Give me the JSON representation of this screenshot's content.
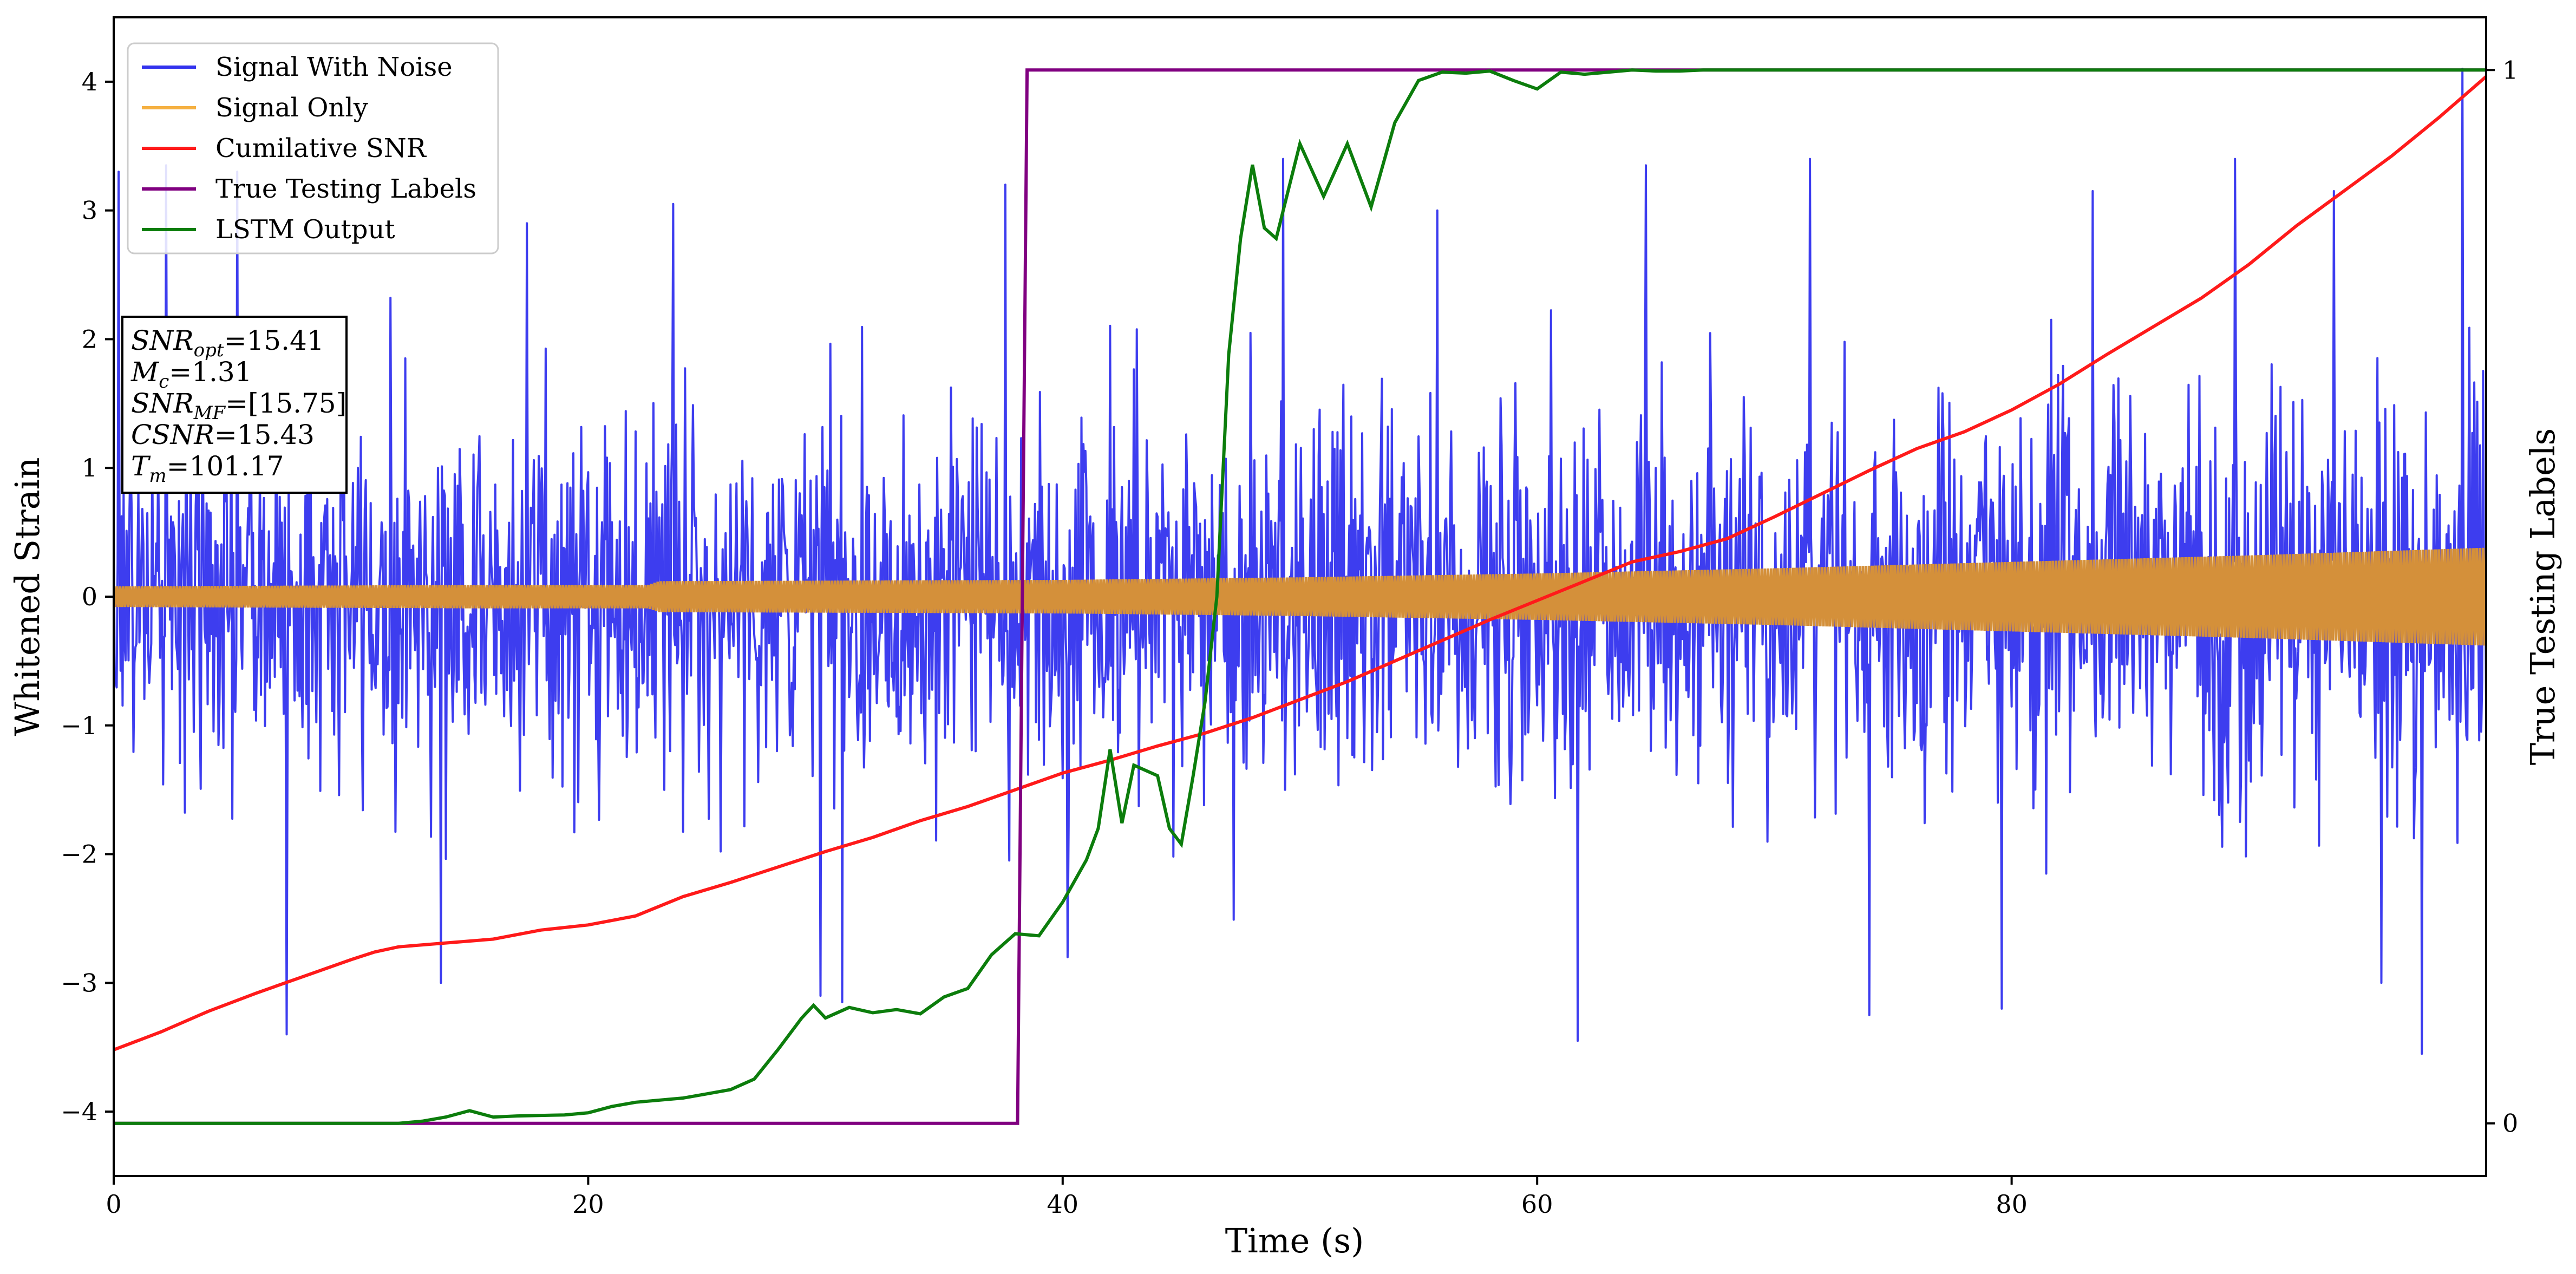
{
  "chart_data": {
    "type": "line",
    "xlabel": "Time (s)",
    "ylabel": "Whitened Strain",
    "y2label": "True Testing Labels",
    "xlim": [
      0,
      100
    ],
    "ylim": [
      -4.5,
      4.5
    ],
    "y2lim": [
      -0.05,
      1.05
    ],
    "xticks": [
      0,
      20,
      40,
      60,
      80
    ],
    "yticks": [
      -4,
      -3,
      -2,
      -1,
      0,
      1,
      2,
      3,
      4
    ],
    "y2ticks": [
      0,
      1
    ],
    "grid": false,
    "legend": {
      "placement": "top-left",
      "entries": [
        "Signal With Noise",
        "Signal Only",
        "Cumilative SNR",
        "True Testing Labels",
        "LSTM Output"
      ]
    },
    "annotation": {
      "lines": [
        {
          "sym": "SNR",
          "sub": "opt",
          "val": "=15.41"
        },
        {
          "sym": "M",
          "sub": "c",
          "val": "=1.31"
        },
        {
          "sym": "SNR",
          "sub": "MF",
          "val": "=[15.75]"
        },
        {
          "sym": "CSNR",
          "sub": "",
          "val": "=15.43"
        },
        {
          "sym": "T",
          "sub": "m",
          "val": "=101.17"
        }
      ]
    },
    "colors": {
      "noise": "#3333ee",
      "signal": "#f5b041",
      "signal_overlap": "#d4903a",
      "csnr": "#ff1a1a",
      "labels": "#800080",
      "lstm": "#0c7d0c"
    },
    "series": [
      {
        "name": "Signal With Noise",
        "axis": "left",
        "style": "dense noise",
        "envelope_x": [
          0,
          100
        ],
        "typical_range": [
          -2.0,
          2.4
        ],
        "peaks": [
          {
            "x": 0.2,
            "y": 3.3
          },
          {
            "x": 2.2,
            "y": 3.35
          },
          {
            "x": 5.2,
            "y": 3.3
          },
          {
            "x": 7.3,
            "y": -3.4
          },
          {
            "x": 13.8,
            "y": -3.0
          },
          {
            "x": 17.4,
            "y": 2.9
          },
          {
            "x": 23.6,
            "y": 3.05
          },
          {
            "x": 29.8,
            "y": -3.1
          },
          {
            "x": 30.7,
            "y": -3.15
          },
          {
            "x": 37.6,
            "y": 3.2
          },
          {
            "x": 40.2,
            "y": -2.8
          },
          {
            "x": 49.3,
            "y": 3.4
          },
          {
            "x": 55.8,
            "y": 3.0
          },
          {
            "x": 61.7,
            "y": -3.45
          },
          {
            "x": 64.6,
            "y": 3.35
          },
          {
            "x": 71.5,
            "y": 3.4
          },
          {
            "x": 74.0,
            "y": -3.25
          },
          {
            "x": 79.6,
            "y": -3.2
          },
          {
            "x": 83.4,
            "y": 3.15
          },
          {
            "x": 89.4,
            "y": 3.4
          },
          {
            "x": 93.6,
            "y": 3.15
          },
          {
            "x": 95.6,
            "y": -3.0
          },
          {
            "x": 97.3,
            "y": -3.55
          },
          {
            "x": 99.0,
            "y": 4.1
          }
        ]
      },
      {
        "name": "Signal Only",
        "axis": "left",
        "style": "chirp oscillation",
        "amplitude": {
          "x": [
            0,
            15,
            22.5,
            23,
            40,
            50,
            60,
            70,
            80,
            90,
            100
          ],
          "y": [
            0.08,
            0.09,
            0.09,
            0.12,
            0.13,
            0.15,
            0.18,
            0.22,
            0.27,
            0.32,
            0.38
          ]
        }
      },
      {
        "name": "Cumilative SNR",
        "axis": "left",
        "x": [
          0,
          2,
          4,
          6,
          8,
          10,
          11,
          12,
          14,
          16,
          18,
          20,
          22,
          24,
          26,
          28,
          30,
          32,
          34,
          36,
          38,
          40,
          42,
          44,
          46,
          48,
          50,
          52,
          54,
          56,
          58,
          60,
          62,
          64,
          66,
          68,
          70,
          72,
          74,
          76,
          78,
          80,
          82,
          84,
          86,
          88,
          90,
          92,
          94,
          96,
          98,
          100
        ],
        "y": [
          -3.52,
          -3.38,
          -3.22,
          -3.08,
          -2.95,
          -2.82,
          -2.76,
          -2.72,
          -2.69,
          -2.66,
          -2.59,
          -2.55,
          -2.48,
          -2.33,
          -2.22,
          -2.1,
          -1.98,
          -1.87,
          -1.74,
          -1.63,
          -1.5,
          -1.37,
          -1.27,
          -1.16,
          -1.06,
          -0.94,
          -0.8,
          -0.66,
          -0.5,
          -0.34,
          -0.18,
          -0.03,
          0.12,
          0.27,
          0.35,
          0.45,
          0.62,
          0.8,
          0.98,
          1.15,
          1.28,
          1.45,
          1.65,
          1.88,
          2.1,
          2.32,
          2.58,
          2.88,
          3.15,
          3.42,
          3.72,
          4.04
        ]
      },
      {
        "name": "True Testing Labels",
        "axis": "right",
        "x": [
          0,
          38.1,
          38.5,
          100
        ],
        "y": [
          0,
          0,
          1,
          1
        ]
      },
      {
        "name": "LSTM Output",
        "axis": "right",
        "x": [
          0,
          12,
          13,
          14,
          15,
          16,
          17,
          19,
          20,
          21,
          22,
          24,
          25,
          26,
          27,
          28,
          29,
          29.5,
          30,
          31,
          32,
          33,
          34,
          35,
          36,
          37,
          38,
          39,
          40,
          41,
          41.5,
          42,
          42.5,
          43,
          44,
          44.5,
          45,
          45.5,
          46,
          46.5,
          47,
          47.5,
          48,
          48.5,
          49,
          50,
          51,
          52,
          53,
          54,
          55,
          56,
          57,
          58,
          59,
          60,
          61,
          62,
          63,
          64,
          65,
          66,
          67,
          68,
          69,
          70,
          72,
          75,
          80,
          85,
          90,
          95,
          100
        ],
        "y": [
          0,
          0,
          0.002,
          0.006,
          0.012,
          0.006,
          0.007,
          0.008,
          0.01,
          0.016,
          0.02,
          0.024,
          0.028,
          0.032,
          0.042,
          0.07,
          0.1,
          0.112,
          0.1,
          0.11,
          0.105,
          0.108,
          0.104,
          0.12,
          0.128,
          0.16,
          0.18,
          0.178,
          0.21,
          0.25,
          0.28,
          0.355,
          0.285,
          0.34,
          0.33,
          0.28,
          0.265,
          0.33,
          0.4,
          0.5,
          0.73,
          0.84,
          0.91,
          0.85,
          0.84,
          0.93,
          0.88,
          0.93,
          0.87,
          0.95,
          0.99,
          0.998,
          0.997,
          0.999,
          0.99,
          0.982,
          0.998,
          0.996,
          0.998,
          1.0,
          0.999,
          0.999,
          1.0,
          1.0,
          1.0,
          1.0,
          1.0,
          1.0,
          1.0,
          1.0,
          1.0,
          1.0,
          1.0
        ]
      }
    ]
  }
}
